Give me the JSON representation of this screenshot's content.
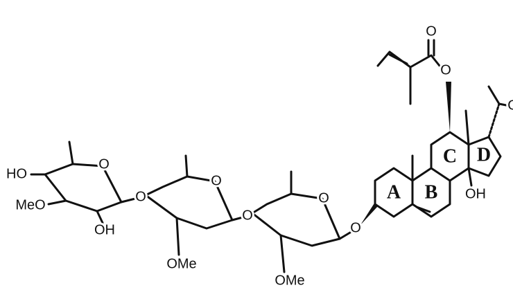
{
  "structure": {
    "rings": {
      "A": "A",
      "B": "B",
      "C": "C",
      "D": "D"
    },
    "atoms": {
      "sugar1_hydroxyl_4": "HO",
      "sugar1_methoxy_3": "MeO",
      "sugar1_hydroxyl_2": "OH",
      "sugar1_ring_oxygen": "O",
      "linkage_1": "O",
      "sugar2_ring_oxygen": "O",
      "sugar2_methoxy_3": "OMe",
      "linkage_2": "O",
      "sugar3_ring_oxygen": "O",
      "sugar3_methoxy_3": "OMe",
      "linkage_3": "O",
      "steroid_hydroxyl_14": "OH",
      "ester_oxygen": "O",
      "carbonyl_oxygen": "O",
      "side_chain_oxygen": "O"
    }
  }
}
